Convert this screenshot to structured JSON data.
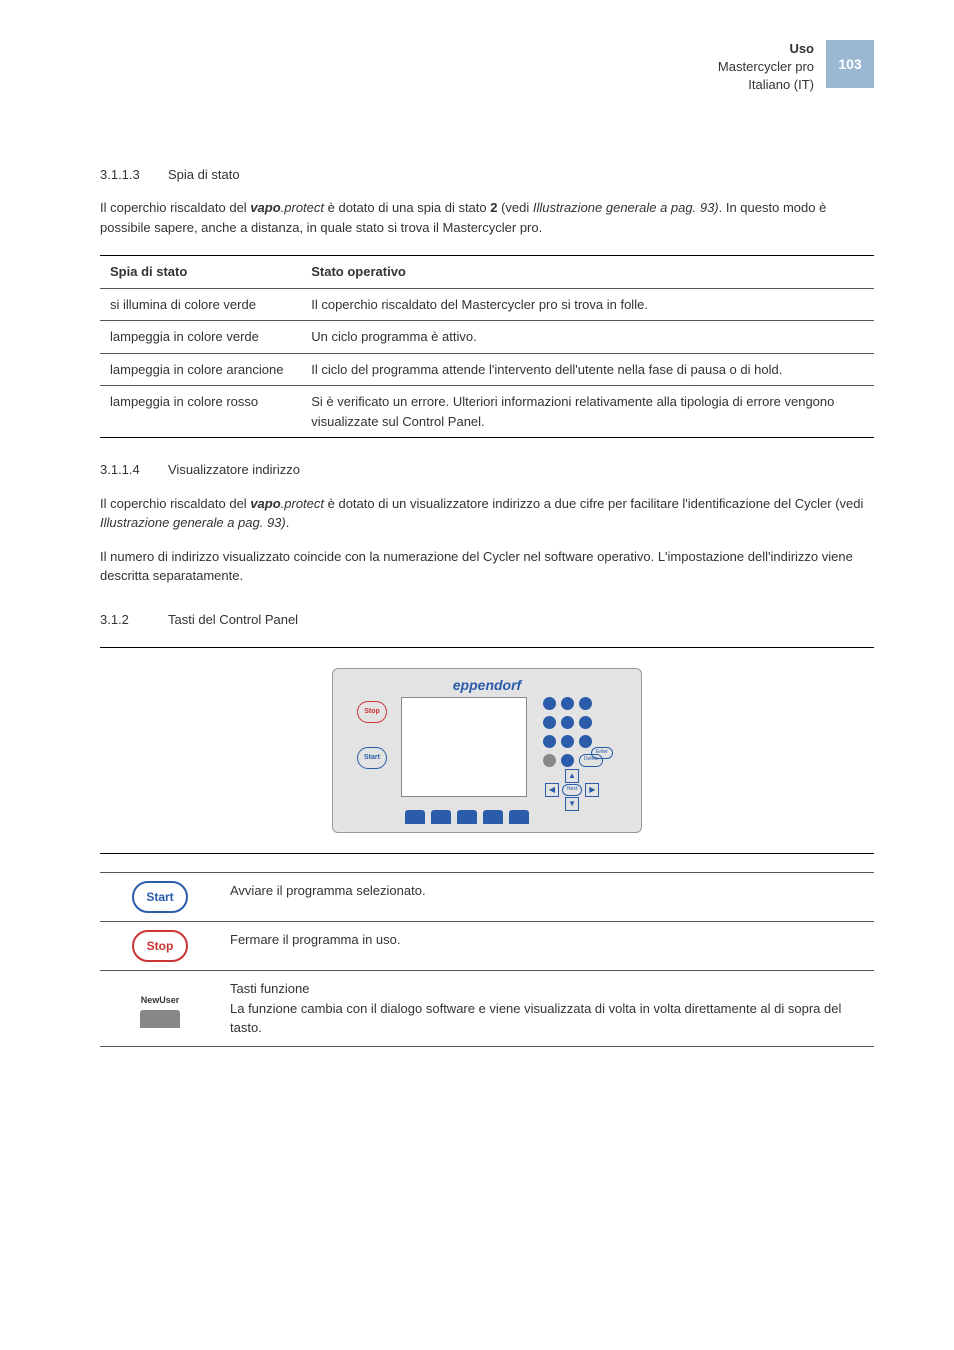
{
  "header": {
    "line1": "Uso",
    "line2": "Mastercycler pro",
    "line3": "Italiano (IT)",
    "page": "103",
    "badge_bg": "#9bb8d3"
  },
  "sec313": {
    "num": "3.1.1.3",
    "title": "Spia di stato",
    "para_html": "Il coperchio riscaldato del <span class='bold italic'>vapo</span><span class='italic'>.protect</span> è dotato di una spia di stato <span class='bold'>2</span> (vedi <span class='italic'>Illustrazione generale a pag. 93)</span>. In questo modo è possibile sapere, anche a distanza, in quale stato si trova il Mastercycler pro."
  },
  "table1": {
    "head": [
      "Spia di stato",
      "Stato operativo"
    ],
    "rows": [
      [
        "si illumina di colore verde",
        "Il coperchio riscaldato del Mastercycler pro si trova in folle."
      ],
      [
        "lampeggia in colore verde",
        "Un ciclo programma è attivo."
      ],
      [
        "lampeggia in colore arancione",
        "Il ciclo del programma attende l'intervento dell'utente nella fase di pausa o di hold."
      ],
      [
        "lampeggia in colore rosso",
        "Si è verificato un errore. Ulteriori informazioni relativamente alla tipologia di errore vengono visualizzate sul Control Panel."
      ]
    ],
    "col1_width": "26%"
  },
  "sec314": {
    "num": "3.1.1.4",
    "title": "Visualizzatore indirizzo",
    "para1_html": "Il coperchio riscaldato del <span class='bold italic'>vapo</span><span class='italic'>.protect</span> è dotato di un visualizzatore indirizzo a due cifre per facilitare l'identificazione del Cycler (vedi <span class='italic'>Illustrazione generale a pag. 93)</span>.",
    "para2": "Il numero di indirizzo visualizzato coincide con la numerazione del Cycler nel software operativo. L'impostazione dell'indirizzo viene descritta separatamente."
  },
  "sec312": {
    "num": "3.1.2",
    "title": "Tasti del Control Panel"
  },
  "panel_graphic": {
    "logo": "eppendorf",
    "stop": "Stop",
    "start": "Start",
    "delete": "Delete",
    "enter": "Enter",
    "next": "Next",
    "brand_blue": "#2a5caa",
    "panel_bg": "#e3e3e3"
  },
  "keys_table": {
    "rows": [
      {
        "key_type": "start",
        "key_label": "Start",
        "desc": "Avviare il programma selezionato."
      },
      {
        "key_type": "stop",
        "key_label": "Stop",
        "desc": "Fermare il programma in uso."
      },
      {
        "key_type": "func",
        "key_label": "NewUser",
        "desc": "Tasti funzione\nLa funzione cambia con il dialogo software e viene visualizzata di volta in volta direttamente al di sopra del tasto."
      }
    ]
  },
  "colors": {
    "text": "#333333",
    "border": "#555555",
    "heavy_border": "#000000",
    "blue": "#2a5caa",
    "red": "#c33333",
    "gray_tab": "#888888"
  }
}
